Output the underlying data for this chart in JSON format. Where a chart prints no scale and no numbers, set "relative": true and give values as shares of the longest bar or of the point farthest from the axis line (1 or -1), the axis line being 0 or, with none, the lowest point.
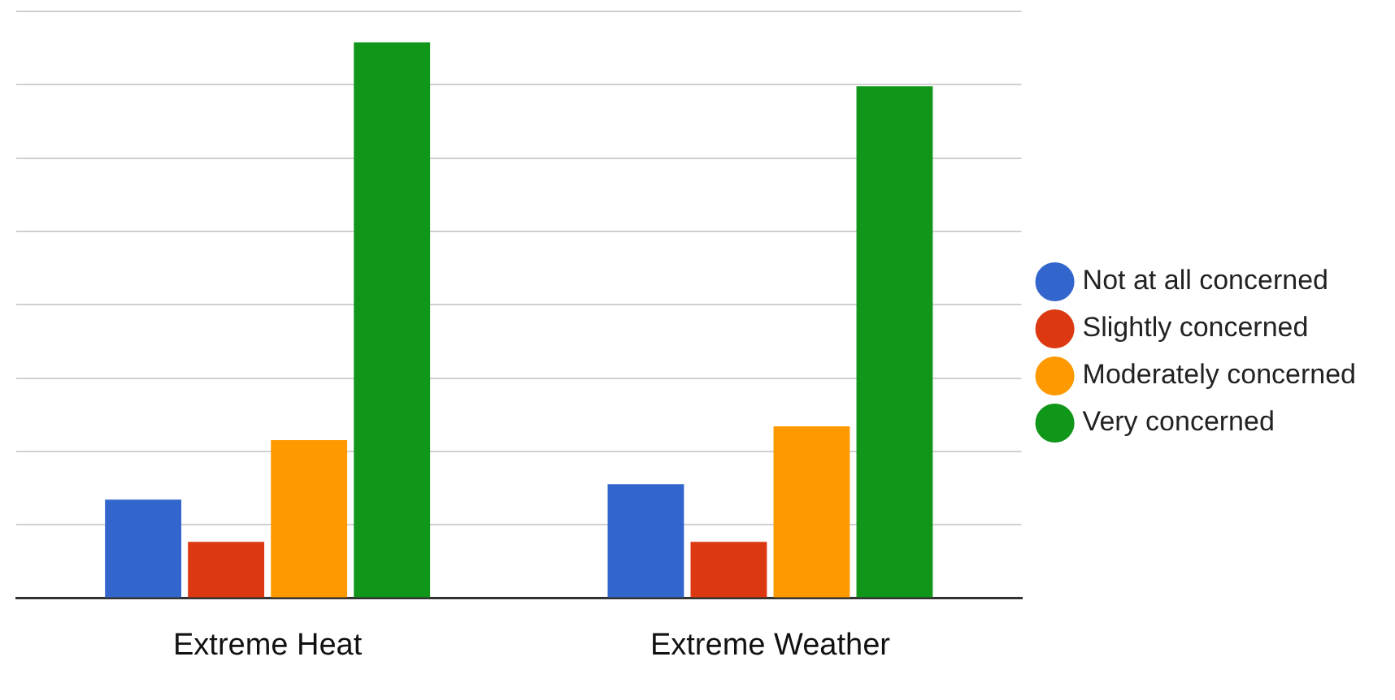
{
  "chart_data": {
    "type": "bar",
    "relative": true,
    "categories": [
      "Extreme Heat",
      "Extreme Weather"
    ],
    "series": [
      {
        "name": "Not at all concerned",
        "color": "#3366cc",
        "values": [
          0.177,
          0.205
        ]
      },
      {
        "name": "Slightly concerned",
        "color": "#dc3912",
        "values": [
          0.101,
          0.101
        ]
      },
      {
        "name": "Moderately concerned",
        "color": "#ff9900",
        "values": [
          0.284,
          0.309
        ]
      },
      {
        "name": "Very concerned",
        "color": "#109618",
        "values": [
          1,
          0.921
        ]
      }
    ],
    "grid": "y",
    "legend": "right"
  }
}
